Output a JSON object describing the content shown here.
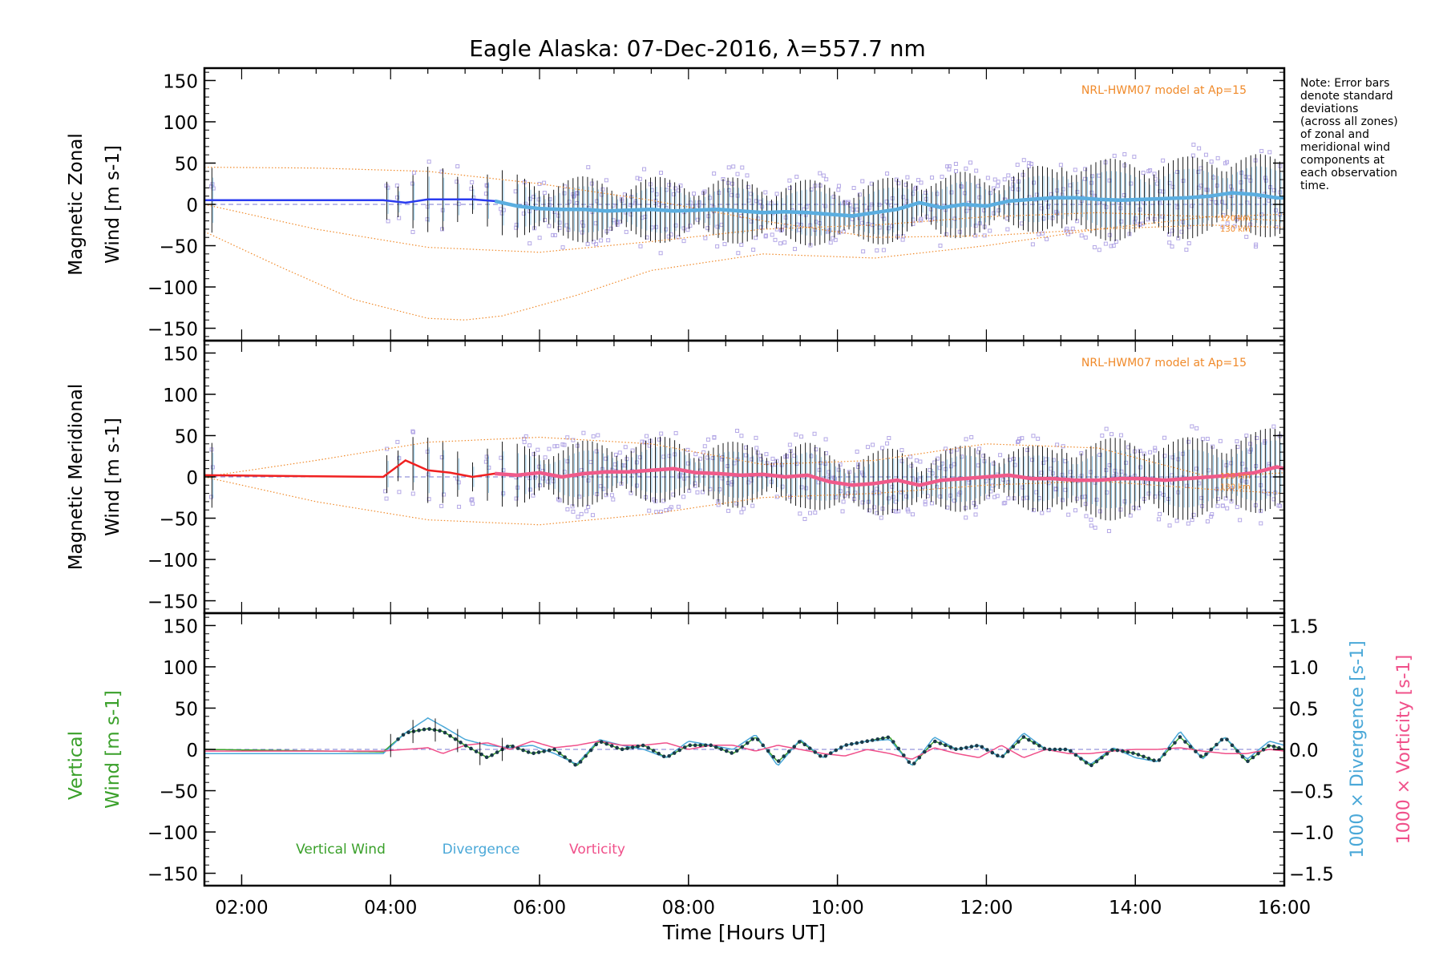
{
  "title": "Eagle Alaska: 07-Dec-2016, λ=557.7 nm",
  "note": [
    "Note: Error bars",
    "denote standard",
    "deviations",
    "(across all zones)",
    "of zonal and",
    "meridional wind",
    "components at",
    "each observation",
    "time."
  ],
  "colors": {
    "axis": "#000000",
    "zonal": "#2b3cf0",
    "zonal_smooth": "#5aaee0",
    "meridional": "#f02020",
    "meridional_smooth": "#f05a8a",
    "model": "#f08a2a",
    "zone_points": "#b4a8e6",
    "vertical": "#3aa02a",
    "divergence": "#4aa8d8",
    "vorticity": "#f0508a",
    "errorbar": "#000000"
  },
  "chart_data": [
    {
      "type": "line",
      "panel": "zonal",
      "ylabel": [
        "Magnetic Zonal",
        "Wind [m s-1]"
      ],
      "ylim": [
        -165,
        165
      ],
      "xlim": [
        1.5,
        16.0
      ],
      "yticks": [
        "150",
        "100",
        "50",
        "0",
        "−50",
        "−100",
        "−150"
      ],
      "ytick_values": [
        150,
        100,
        50,
        0,
        -50,
        -100,
        -150
      ],
      "model_label": "NRL-HWM07 model at Ap=15",
      "model_alt_labels": [
        "120 km",
        "130 km"
      ],
      "series": [
        {
          "name": "zonal",
          "x": [
            1.5,
            3.9,
            4.2,
            4.5,
            4.8,
            5.1,
            5.4,
            5.7,
            6.0,
            6.3,
            6.6,
            6.9,
            7.2,
            7.5,
            7.8,
            8.1,
            8.4,
            8.7,
            9.0,
            9.3,
            9.6,
            9.9,
            10.2,
            10.5,
            10.8,
            11.1,
            11.4,
            11.7,
            12.0,
            12.3,
            12.6,
            12.9,
            13.2,
            13.5,
            13.8,
            14.1,
            14.4,
            14.7,
            15.0,
            15.3,
            15.6,
            15.9,
            16.0
          ],
          "y": [
            5,
            5,
            2,
            6,
            6,
            6,
            4,
            -2,
            -5,
            -6,
            -6,
            -8,
            -7,
            -6,
            -8,
            -7,
            -6,
            -8,
            -10,
            -9,
            -10,
            -12,
            -14,
            -10,
            -6,
            2,
            -4,
            0,
            -2,
            4,
            6,
            8,
            8,
            6,
            5,
            6,
            7,
            8,
            10,
            14,
            12,
            8,
            8
          ]
        }
      ],
      "models": [
        {
          "x": [
            1.5,
            3.0,
            4.5,
            6.0,
            7.5,
            9.0,
            10.5,
            12.0,
            13.5,
            15.0,
            16.0
          ],
          "y": [
            45,
            44,
            40,
            25,
            5,
            -20,
            -40,
            -38,
            -30,
            -25,
            -28
          ]
        },
        {
          "x": [
            1.5,
            3.0,
            4.5,
            6.0,
            7.5,
            9.0,
            10.5,
            12.0,
            13.5,
            15.0,
            16.0
          ],
          "y": [
            0,
            -30,
            -52,
            -58,
            -45,
            -30,
            -25,
            -15,
            -10,
            -15,
            -20
          ]
        },
        {
          "x": [
            1.5,
            2.5,
            3.5,
            4.5,
            5.0,
            5.5,
            6.5,
            7.5,
            9.0,
            10.5,
            12.0,
            13.5,
            15.0,
            16.0
          ],
          "y": [
            -33,
            -75,
            -115,
            -138,
            -140,
            -135,
            -110,
            -80,
            -60,
            -65,
            -50,
            -30,
            -15,
            -12
          ]
        }
      ]
    },
    {
      "type": "line",
      "panel": "meridional",
      "ylabel": [
        "Magnetic Meridional",
        "Wind [m s-1]"
      ],
      "ylim": [
        -165,
        165
      ],
      "xlim": [
        1.5,
        16.0
      ],
      "yticks": [
        "150",
        "100",
        "50",
        "0",
        "−50",
        "−100",
        "−150"
      ],
      "ytick_values": [
        150,
        100,
        50,
        0,
        -50,
        -100,
        -150
      ],
      "model_label": "NRL-HWM07 model at Ap=15",
      "model_alt_labels": [
        "120 km",
        "130 km"
      ],
      "series": [
        {
          "name": "meridional",
          "x": [
            1.5,
            3.9,
            4.2,
            4.5,
            4.8,
            5.1,
            5.4,
            5.7,
            6.0,
            6.3,
            6.6,
            6.9,
            7.2,
            7.5,
            7.8,
            8.1,
            8.4,
            8.7,
            9.0,
            9.3,
            9.6,
            9.9,
            10.2,
            10.5,
            10.8,
            11.1,
            11.4,
            11.7,
            12.0,
            12.3,
            12.6,
            12.9,
            13.2,
            13.5,
            13.8,
            14.1,
            14.4,
            14.7,
            15.0,
            15.3,
            15.6,
            15.9,
            16.0
          ],
          "y": [
            2,
            0,
            20,
            8,
            5,
            0,
            4,
            2,
            5,
            0,
            4,
            6,
            6,
            8,
            10,
            5,
            4,
            2,
            3,
            0,
            2,
            -6,
            -10,
            -8,
            -4,
            -10,
            -4,
            -2,
            0,
            2,
            -2,
            -2,
            -4,
            -4,
            -2,
            -2,
            -4,
            -2,
            0,
            2,
            5,
            12,
            10
          ]
        }
      ],
      "models": [
        {
          "x": [
            1.5,
            3.0,
            4.5,
            6.0,
            7.5,
            9.0,
            10.5,
            12.0,
            13.5,
            15.0,
            16.0
          ],
          "y": [
            0,
            20,
            42,
            48,
            40,
            15,
            20,
            40,
            35,
            0,
            5
          ]
        },
        {
          "x": [
            1.5,
            3.0,
            4.5,
            6.0,
            7.5,
            9.0,
            10.5,
            12.0,
            13.5,
            15.0,
            16.0
          ],
          "y": [
            0,
            -30,
            -52,
            -58,
            -45,
            -25,
            -20,
            -10,
            -5,
            -15,
            -20
          ]
        }
      ]
    },
    {
      "type": "line",
      "panel": "vertical",
      "ylabel_left": [
        "Vertical",
        "Wind [m s-1]"
      ],
      "ylabel_right_1": "1000 × Divergence [s-1]",
      "ylabel_right_2": "1000 × Vorticity [s-1]",
      "ylim": [
        -165,
        165
      ],
      "y2lim": [
        -1.65,
        1.65
      ],
      "xlim": [
        1.5,
        16.0
      ],
      "xlabel": "Time [Hours UT]",
      "xticks": [
        "02:00",
        "04:00",
        "06:00",
        "08:00",
        "10:00",
        "12:00",
        "14:00",
        "16:00"
      ],
      "xtick_values": [
        2,
        4,
        6,
        8,
        10,
        12,
        14,
        16
      ],
      "yticks": [
        "150",
        "100",
        "50",
        "0",
        "−50",
        "−100",
        "−150"
      ],
      "ytick_values": [
        150,
        100,
        50,
        0,
        -50,
        -100,
        -150
      ],
      "y2ticks": [
        "1.5",
        "1.0",
        "0.5",
        "0.0",
        "−0.5",
        "−1.0",
        "−1.5"
      ],
      "y2tick_values": [
        1.5,
        1.0,
        0.5,
        0.0,
        -0.5,
        -1.0,
        -1.5
      ],
      "legend": [
        "Vertical Wind",
        "Divergence",
        "Vorticity"
      ],
      "series": [
        {
          "name": "Vertical Wind",
          "x": [
            1.5,
            3.9,
            4.2,
            4.5,
            4.7,
            5.0,
            5.3,
            5.6,
            5.9,
            6.2,
            6.5,
            6.8,
            7.1,
            7.4,
            7.7,
            8.0,
            8.3,
            8.6,
            8.9,
            9.2,
            9.5,
            9.8,
            10.1,
            10.4,
            10.7,
            11.0,
            11.3,
            11.6,
            11.9,
            12.2,
            12.5,
            12.8,
            13.1,
            13.4,
            13.7,
            14.0,
            14.3,
            14.6,
            14.9,
            15.2,
            15.5,
            15.8,
            16.0
          ],
          "y": [
            0,
            -3,
            20,
            25,
            22,
            5,
            -10,
            5,
            -5,
            0,
            -20,
            10,
            0,
            5,
            -10,
            5,
            5,
            -5,
            15,
            -15,
            10,
            -10,
            5,
            10,
            15,
            -20,
            10,
            0,
            5,
            -10,
            15,
            0,
            0,
            -20,
            0,
            -5,
            -15,
            15,
            -10,
            15,
            -15,
            5,
            0
          ]
        },
        {
          "name": "Divergence",
          "x": [
            1.5,
            3.9,
            4.2,
            4.5,
            4.7,
            5.0,
            5.3,
            5.6,
            5.9,
            6.2,
            6.5,
            6.8,
            7.1,
            7.4,
            7.7,
            8.0,
            8.3,
            8.6,
            8.9,
            9.2,
            9.5,
            9.8,
            10.1,
            10.4,
            10.7,
            11.0,
            11.3,
            11.6,
            11.9,
            12.2,
            12.5,
            12.8,
            13.1,
            13.4,
            13.7,
            14.0,
            14.3,
            14.6,
            14.9,
            15.2,
            15.5,
            15.8,
            16.0
          ],
          "y": [
            -0.05,
            -0.05,
            0.2,
            0.38,
            0.28,
            0.12,
            0.05,
            0.02,
            0.05,
            -0.05,
            -0.18,
            0.12,
            0.05,
            0.0,
            -0.1,
            0.1,
            0.05,
            0.0,
            0.18,
            -0.2,
            0.12,
            -0.1,
            0.05,
            0.1,
            0.12,
            -0.2,
            0.15,
            0.0,
            0.05,
            -0.1,
            0.2,
            0.0,
            0.0,
            -0.18,
            0.02,
            -0.1,
            -0.15,
            0.22,
            -0.12,
            0.15,
            -0.12,
            0.1,
            0.05
          ]
        },
        {
          "name": "Vorticity",
          "x": [
            1.5,
            3.9,
            4.2,
            4.5,
            4.7,
            5.0,
            5.3,
            5.6,
            5.9,
            6.2,
            6.5,
            6.8,
            7.1,
            7.4,
            7.7,
            8.0,
            8.3,
            8.6,
            8.9,
            9.2,
            9.5,
            9.8,
            10.1,
            10.4,
            10.7,
            11.0,
            11.3,
            11.6,
            11.9,
            12.2,
            12.5,
            12.8,
            13.1,
            13.4,
            13.7,
            14.0,
            14.3,
            14.6,
            14.9,
            15.2,
            15.5,
            15.8,
            16.0
          ],
          "y": [
            -0.02,
            -0.02,
            0.0,
            0.02,
            -0.05,
            0.05,
            0.08,
            0.0,
            0.1,
            0.02,
            0.05,
            0.1,
            0.05,
            0.05,
            0.08,
            0.0,
            0.05,
            0.05,
            -0.02,
            0.05,
            0.0,
            -0.05,
            -0.08,
            0.0,
            -0.05,
            -0.12,
            0.02,
            -0.05,
            -0.1,
            0.05,
            -0.1,
            0.0,
            -0.05,
            -0.05,
            -0.02,
            0.0,
            0.0,
            0.02,
            -0.02,
            -0.05,
            -0.05,
            0.0,
            -0.02
          ]
        }
      ]
    }
  ]
}
